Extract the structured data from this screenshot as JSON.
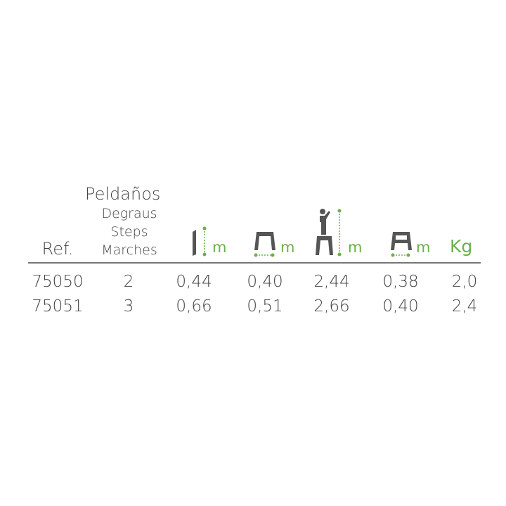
{
  "colors": {
    "accent": "#6ab04c",
    "text": "#444444",
    "icon": "#555555"
  },
  "header": {
    "ref": "Ref.",
    "steps_labels": [
      "Peldaños",
      "Degraus",
      "Steps",
      "Marches"
    ],
    "columns": [
      {
        "icon": "closed-height-icon",
        "unit": "m"
      },
      {
        "icon": "base-width-icon",
        "unit": "m"
      },
      {
        "icon": "working-height-icon",
        "unit": "m"
      },
      {
        "icon": "platform-width-icon",
        "unit": "m"
      },
      {
        "icon": "weight",
        "unit": "Kg"
      }
    ]
  },
  "rows": [
    {
      "ref": "75050",
      "steps": "2",
      "values": [
        "0,44",
        "0,40",
        "2,44",
        "0,38",
        "2,0"
      ]
    },
    {
      "ref": "75051",
      "steps": "3",
      "values": [
        "0,66",
        "0,51",
        "2,66",
        "0,40",
        "2,4"
      ]
    }
  ]
}
